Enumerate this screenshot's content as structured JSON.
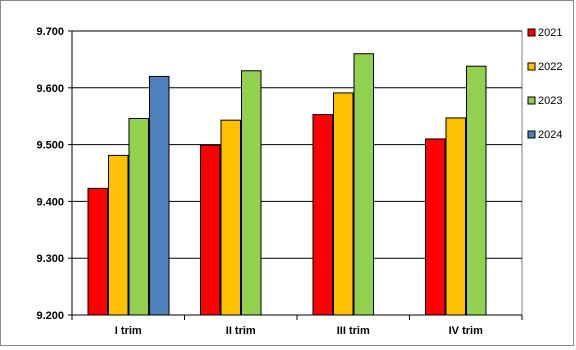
{
  "chart_data": {
    "type": "bar",
    "title": "",
    "xlabel": "",
    "ylabel": "",
    "categories": [
      "I trim",
      "II trim",
      "III trim",
      "IV trim"
    ],
    "ylim": [
      9200,
      9700
    ],
    "yticks": [
      9200,
      9300,
      9400,
      9500,
      9600,
      9700
    ],
    "ytick_labels": [
      "9.200",
      "9.300",
      "9.400",
      "9.500",
      "9.600",
      "9.700"
    ],
    "grid": "horizontal",
    "legend_position": "right",
    "series": [
      {
        "name": "2021",
        "color": "#ff0000",
        "values": [
          9423,
          9499,
          9553,
          9510
        ]
      },
      {
        "name": "2022",
        "color": "#ffc000",
        "values": [
          9481,
          9543,
          9591,
          9547
        ]
      },
      {
        "name": "2023",
        "color": "#92d050",
        "values": [
          9546,
          9630,
          9660,
          9638
        ]
      },
      {
        "name": "2024",
        "color": "#4f81bd",
        "values": [
          9620,
          null,
          null,
          null
        ]
      }
    ]
  }
}
